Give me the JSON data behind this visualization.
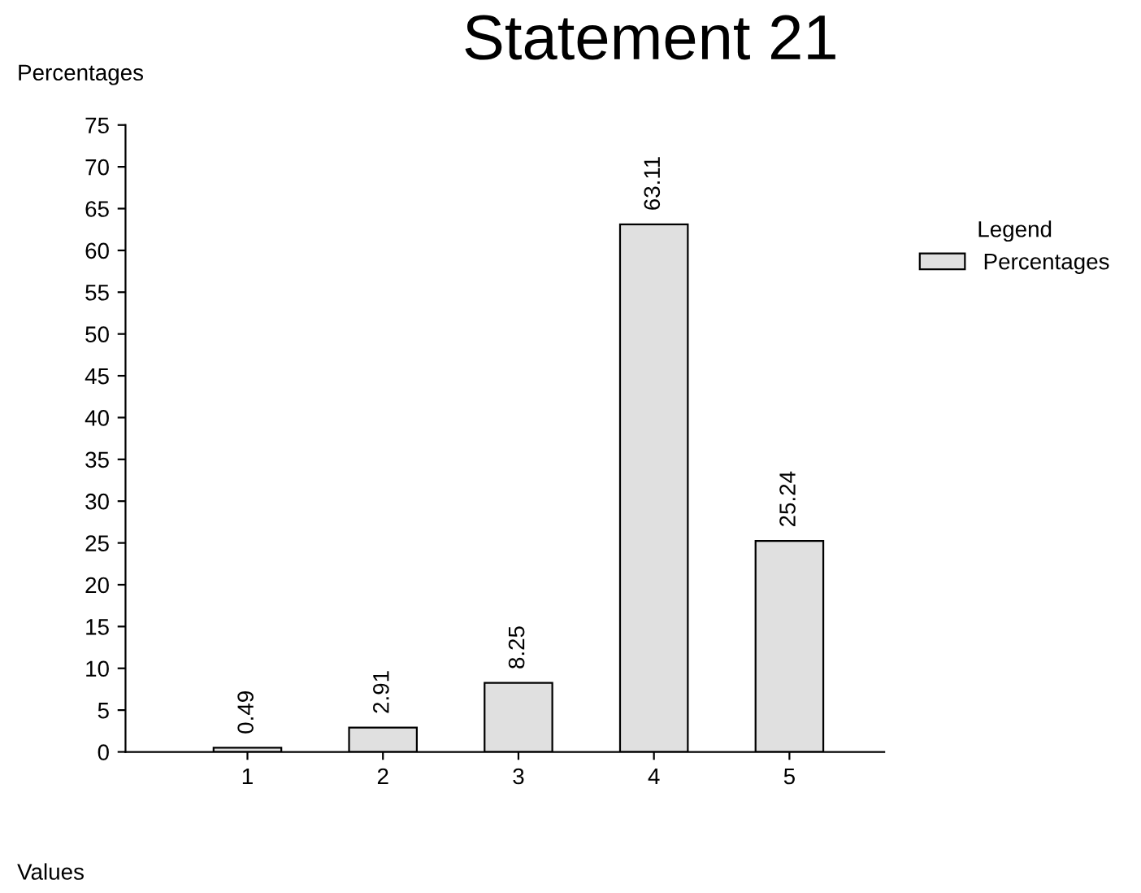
{
  "chart_data": {
    "type": "bar",
    "title": "Statement 21",
    "ylabel": "Percentages",
    "xlabel": "Values",
    "legend_title": "Legend",
    "categories": [
      "1",
      "2",
      "3",
      "4",
      "5"
    ],
    "series": [
      {
        "name": "Percentages",
        "color": "#e0e0e0",
        "values": [
          0.49,
          2.91,
          8.25,
          63.11,
          25.24
        ]
      }
    ],
    "ylim": [
      0,
      75
    ],
    "yticks": [
      0,
      5,
      10,
      15,
      20,
      25,
      30,
      35,
      40,
      45,
      50,
      55,
      60,
      65,
      70,
      75
    ],
    "data_labels": true,
    "legend": "right",
    "grid": false
  }
}
